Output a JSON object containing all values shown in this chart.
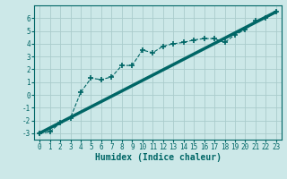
{
  "xlabel": "Humidex (Indice chaleur)",
  "bg_color": "#cce8e8",
  "grid_color": "#aacccc",
  "line_color": "#006666",
  "xlim": [
    -0.5,
    23.5
  ],
  "ylim": [
    -3.5,
    7.0
  ],
  "xticks": [
    0,
    1,
    2,
    3,
    4,
    5,
    6,
    7,
    8,
    9,
    10,
    11,
    12,
    13,
    14,
    15,
    16,
    17,
    18,
    19,
    20,
    21,
    22,
    23
  ],
  "yticks": [
    -3,
    -2,
    -1,
    0,
    1,
    2,
    3,
    4,
    5,
    6
  ],
  "line1_x": [
    0,
    1,
    2,
    3,
    4,
    5,
    6,
    7,
    8,
    9,
    10,
    11,
    12,
    13,
    14,
    15,
    16,
    17,
    18,
    19,
    20,
    21,
    22,
    23
  ],
  "line1_y": [
    -3.0,
    -2.9,
    -2.2,
    -1.8,
    0.2,
    1.3,
    1.2,
    1.4,
    2.3,
    2.3,
    3.5,
    3.3,
    3.8,
    4.0,
    4.1,
    4.3,
    4.4,
    4.4,
    4.1,
    4.7,
    5.1,
    5.8,
    6.0,
    6.5
  ],
  "line2_x": [
    0,
    23
  ],
  "line2_y": [
    -3.0,
    6.5
  ],
  "tick_fontsize": 5.5,
  "xlabel_fontsize": 7
}
